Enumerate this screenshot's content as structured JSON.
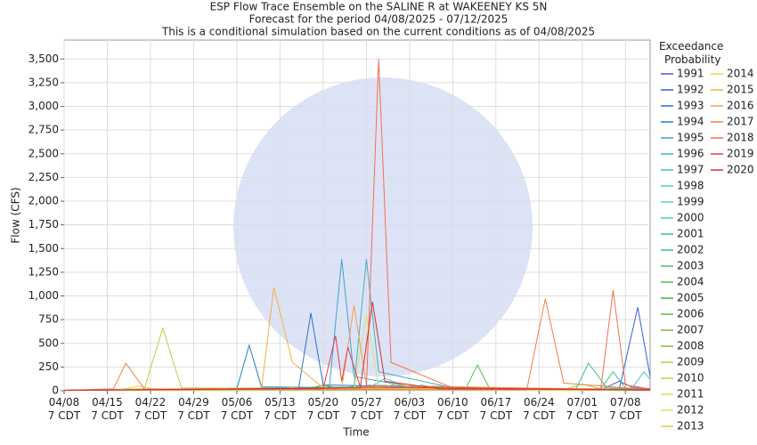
{
  "chart_data": {
    "type": "line",
    "title": "ESP Flow Trace Ensemble on the SALINE R at WAKEENEY KS 5N",
    "subtitle": [
      "Forecast for the period 04/08/2025 - 07/12/2025",
      "This is a conditional simulation based on the current conditions as of 04/08/2025"
    ],
    "x_label": "Time",
    "y_label": "Flow (CFS)",
    "legend_title": "Exceedance Probability",
    "xlim": [
      "04/08",
      "07/12"
    ],
    "xticks": [
      {
        "value": "04/08",
        "label": "04/08 7 CDT"
      },
      {
        "value": "04/15",
        "label": "04/15 7 CDT"
      },
      {
        "value": "04/22",
        "label": "04/22 7 CDT"
      },
      {
        "value": "04/29",
        "label": "04/29 7 CDT"
      },
      {
        "value": "05/06",
        "label": "05/06 7 CDT"
      },
      {
        "value": "05/13",
        "label": "05/13 7 CDT"
      },
      {
        "value": "05/20",
        "label": "05/20 7 CDT"
      },
      {
        "value": "05/27",
        "label": "05/27 7 CDT"
      },
      {
        "value": "06/03",
        "label": "06/03 7 CDT"
      },
      {
        "value": "06/10",
        "label": "06/10 7 CDT"
      },
      {
        "value": "06/17",
        "label": "06/17 7 CDT"
      },
      {
        "value": "06/24",
        "label": "06/24 7 CDT"
      },
      {
        "value": "07/01",
        "label": "07/01 7 CDT"
      },
      {
        "value": "07/08",
        "label": "07/08 7 CDT"
      }
    ],
    "ylim": [
      0,
      3700
    ],
    "yticks": [
      0,
      250,
      500,
      750,
      {
        "value": 1000,
        "label": "1,000"
      },
      {
        "value": 1250,
        "label": "1,250"
      },
      {
        "value": 1500,
        "label": "1,500"
      },
      {
        "value": 1750,
        "label": "1,750"
      },
      {
        "value": 2000,
        "label": "2,000"
      },
      {
        "value": 2250,
        "label": "2,250"
      },
      {
        "value": 2500,
        "label": "2,500"
      },
      {
        "value": 2750,
        "label": "2,750"
      },
      {
        "value": 3000,
        "label": "3,000"
      },
      {
        "value": 3250,
        "label": "3,250"
      },
      {
        "value": 3500,
        "label": "3,500"
      }
    ],
    "grid": true,
    "series": [
      {
        "name": "1991",
        "color": "#5050e0",
        "x": [
          "04/08",
          "07/04",
          "07/07",
          "07/09",
          "07/12"
        ],
        "values": [
          5,
          10,
          100,
          40,
          20
        ]
      },
      {
        "name": "1992",
        "color": "#3060d0",
        "x": [
          "04/08",
          "07/07",
          "07/10",
          "07/12"
        ],
        "values": [
          5,
          20,
          880,
          150
        ]
      },
      {
        "name": "1993",
        "color": "#3070c0",
        "x": [
          "04/08",
          "05/16",
          "05/18",
          "05/20",
          "07/12"
        ],
        "values": [
          5,
          20,
          820,
          60,
          5
        ]
      },
      {
        "name": "1994",
        "color": "#2080c0",
        "x": [
          "04/08",
          "05/06",
          "05/08",
          "05/10",
          "07/12"
        ],
        "values": [
          5,
          20,
          480,
          40,
          5
        ]
      },
      {
        "name": "1995",
        "color": "#40a0d0",
        "x": [
          "04/08",
          "05/21",
          "05/23",
          "05/25",
          "06/05",
          "07/12"
        ],
        "values": [
          5,
          30,
          1390,
          150,
          20,
          5
        ]
      },
      {
        "name": "1996",
        "color": "#40b0c0",
        "x": [
          "04/08",
          "05/25",
          "05/27",
          "05/29",
          "06/10",
          "07/12"
        ],
        "values": [
          5,
          40,
          1390,
          200,
          30,
          10
        ]
      },
      {
        "name": "1997",
        "color": "#40c0c0",
        "x": [
          "04/08",
          "07/09",
          "07/11",
          "07/12"
        ],
        "values": [
          5,
          20,
          200,
          120
        ]
      },
      {
        "name": "1998",
        "color": "#50d0c0",
        "x": [
          "04/08",
          "05/27",
          "05/30",
          "06/03",
          "07/12"
        ],
        "values": [
          5,
          20,
          130,
          30,
          5
        ]
      },
      {
        "name": "1999",
        "color": "#60d0c0",
        "x": [
          "04/08",
          "05/29",
          "06/01",
          "06/04",
          "07/12"
        ],
        "values": [
          5,
          15,
          80,
          20,
          5
        ]
      },
      {
        "name": "2000",
        "color": "#50d0b0",
        "x": [
          "04/08",
          "06/02",
          "06/05",
          "06/08",
          "07/12"
        ],
        "values": [
          5,
          10,
          60,
          15,
          5
        ]
      },
      {
        "name": "2001",
        "color": "#40c090",
        "x": [
          "04/08",
          "06/30",
          "07/02",
          "07/05",
          "07/12"
        ],
        "values": [
          5,
          20,
          290,
          30,
          10
        ]
      },
      {
        "name": "2002",
        "color": "#40c080",
        "x": [
          "04/08",
          "07/04",
          "07/06",
          "07/08",
          "07/12"
        ],
        "values": [
          5,
          20,
          200,
          30,
          10
        ]
      },
      {
        "name": "2003",
        "color": "#50c070",
        "x": [
          "04/08",
          "05/22",
          "05/25",
          "05/28",
          "07/12"
        ],
        "values": [
          5,
          10,
          50,
          15,
          5
        ]
      },
      {
        "name": "2004",
        "color": "#50c050",
        "x": [
          "04/08",
          "06/12",
          "06/14",
          "06/16",
          "07/12"
        ],
        "values": [
          5,
          10,
          270,
          20,
          5
        ]
      },
      {
        "name": "2005",
        "color": "#40b040",
        "x": [
          "04/08",
          "05/17",
          "05/20",
          "05/23",
          "07/12"
        ],
        "values": [
          5,
          10,
          60,
          15,
          5
        ]
      },
      {
        "name": "2006",
        "color": "#60c040",
        "x": [
          "04/08",
          "06/07",
          "06/10",
          "06/13",
          "07/12"
        ],
        "values": [
          5,
          10,
          40,
          10,
          5
        ]
      },
      {
        "name": "2007",
        "color": "#70c040",
        "x": [
          "04/08",
          "06/17",
          "06/20",
          "06/23",
          "07/12"
        ],
        "values": [
          5,
          10,
          30,
          10,
          5
        ]
      },
      {
        "name": "2008",
        "color": "#80c040",
        "x": [
          "04/08",
          "05/25",
          "05/28",
          "05/31",
          "07/12"
        ],
        "values": [
          5,
          10,
          40,
          10,
          5
        ]
      },
      {
        "name": "2009",
        "color": "#a0d040",
        "x": [
          "04/08",
          "06/28",
          "07/01",
          "07/04",
          "07/12"
        ],
        "values": [
          5,
          10,
          70,
          20,
          5
        ]
      },
      {
        "name": "2010",
        "color": "#c0d040",
        "x": [
          "04/08",
          "04/21",
          "04/24",
          "04/27",
          "07/12"
        ],
        "values": [
          5,
          20,
          660,
          30,
          5
        ]
      },
      {
        "name": "2011",
        "color": "#e0e040",
        "x": [
          "04/08",
          "04/17",
          "04/20",
          "04/23",
          "07/12"
        ],
        "values": [
          5,
          10,
          50,
          15,
          5
        ]
      },
      {
        "name": "2012",
        "color": "#e0e060",
        "x": [
          "04/08",
          "05/25",
          "05/27",
          "05/29",
          "07/12"
        ],
        "values": [
          5,
          20,
          800,
          40,
          5
        ]
      },
      {
        "name": "2013",
        "color": "#e0d040",
        "x": [
          "04/08",
          "06/02",
          "06/05",
          "06/08",
          "07/12"
        ],
        "values": [
          5,
          10,
          40,
          10,
          5
        ]
      },
      {
        "name": "2014",
        "color": "#f0d040",
        "x": [
          "04/08",
          "05/12",
          "05/15",
          "05/18",
          "07/12"
        ],
        "values": [
          5,
          10,
          30,
          10,
          5
        ]
      },
      {
        "name": "2015",
        "color": "#f0b040",
        "x": [
          "04/08",
          "05/10",
          "05/12",
          "05/15",
          "05/20",
          "07/12"
        ],
        "values": [
          5,
          20,
          1090,
          300,
          30,
          5
        ]
      },
      {
        "name": "2016",
        "color": "#f0a050",
        "x": [
          "04/08",
          "05/23",
          "05/25",
          "05/27",
          "07/12"
        ],
        "values": [
          5,
          20,
          900,
          60,
          5
        ]
      },
      {
        "name": "2017",
        "color": "#f08040",
        "x": [
          "04/08",
          "04/16",
          "04/18",
          "04/21",
          "06/22",
          "06/25",
          "06/28",
          "07/12"
        ],
        "values": [
          5,
          20,
          290,
          20,
          10,
          970,
          80,
          10
        ]
      },
      {
        "name": "2018",
        "color": "#f07050",
        "x": [
          "04/08",
          "05/27",
          "05/29",
          "05/31",
          "06/10",
          "07/04",
          "07/06",
          "07/08",
          "07/12"
        ],
        "values": [
          5,
          30,
          3500,
          300,
          30,
          20,
          1060,
          60,
          20
        ]
      },
      {
        "name": "2019",
        "color": "#e04040",
        "x": [
          "04/08",
          "05/20",
          "05/22",
          "05/23",
          "05/24",
          "05/26",
          "07/12"
        ],
        "values": [
          5,
          20,
          580,
          100,
          460,
          40,
          5
        ]
      },
      {
        "name": "2020",
        "color": "#d03030",
        "x": [
          "04/08",
          "05/26",
          "05/28",
          "05/30",
          "06/08",
          "07/12"
        ],
        "values": [
          5,
          30,
          940,
          100,
          20,
          10
        ]
      }
    ]
  }
}
